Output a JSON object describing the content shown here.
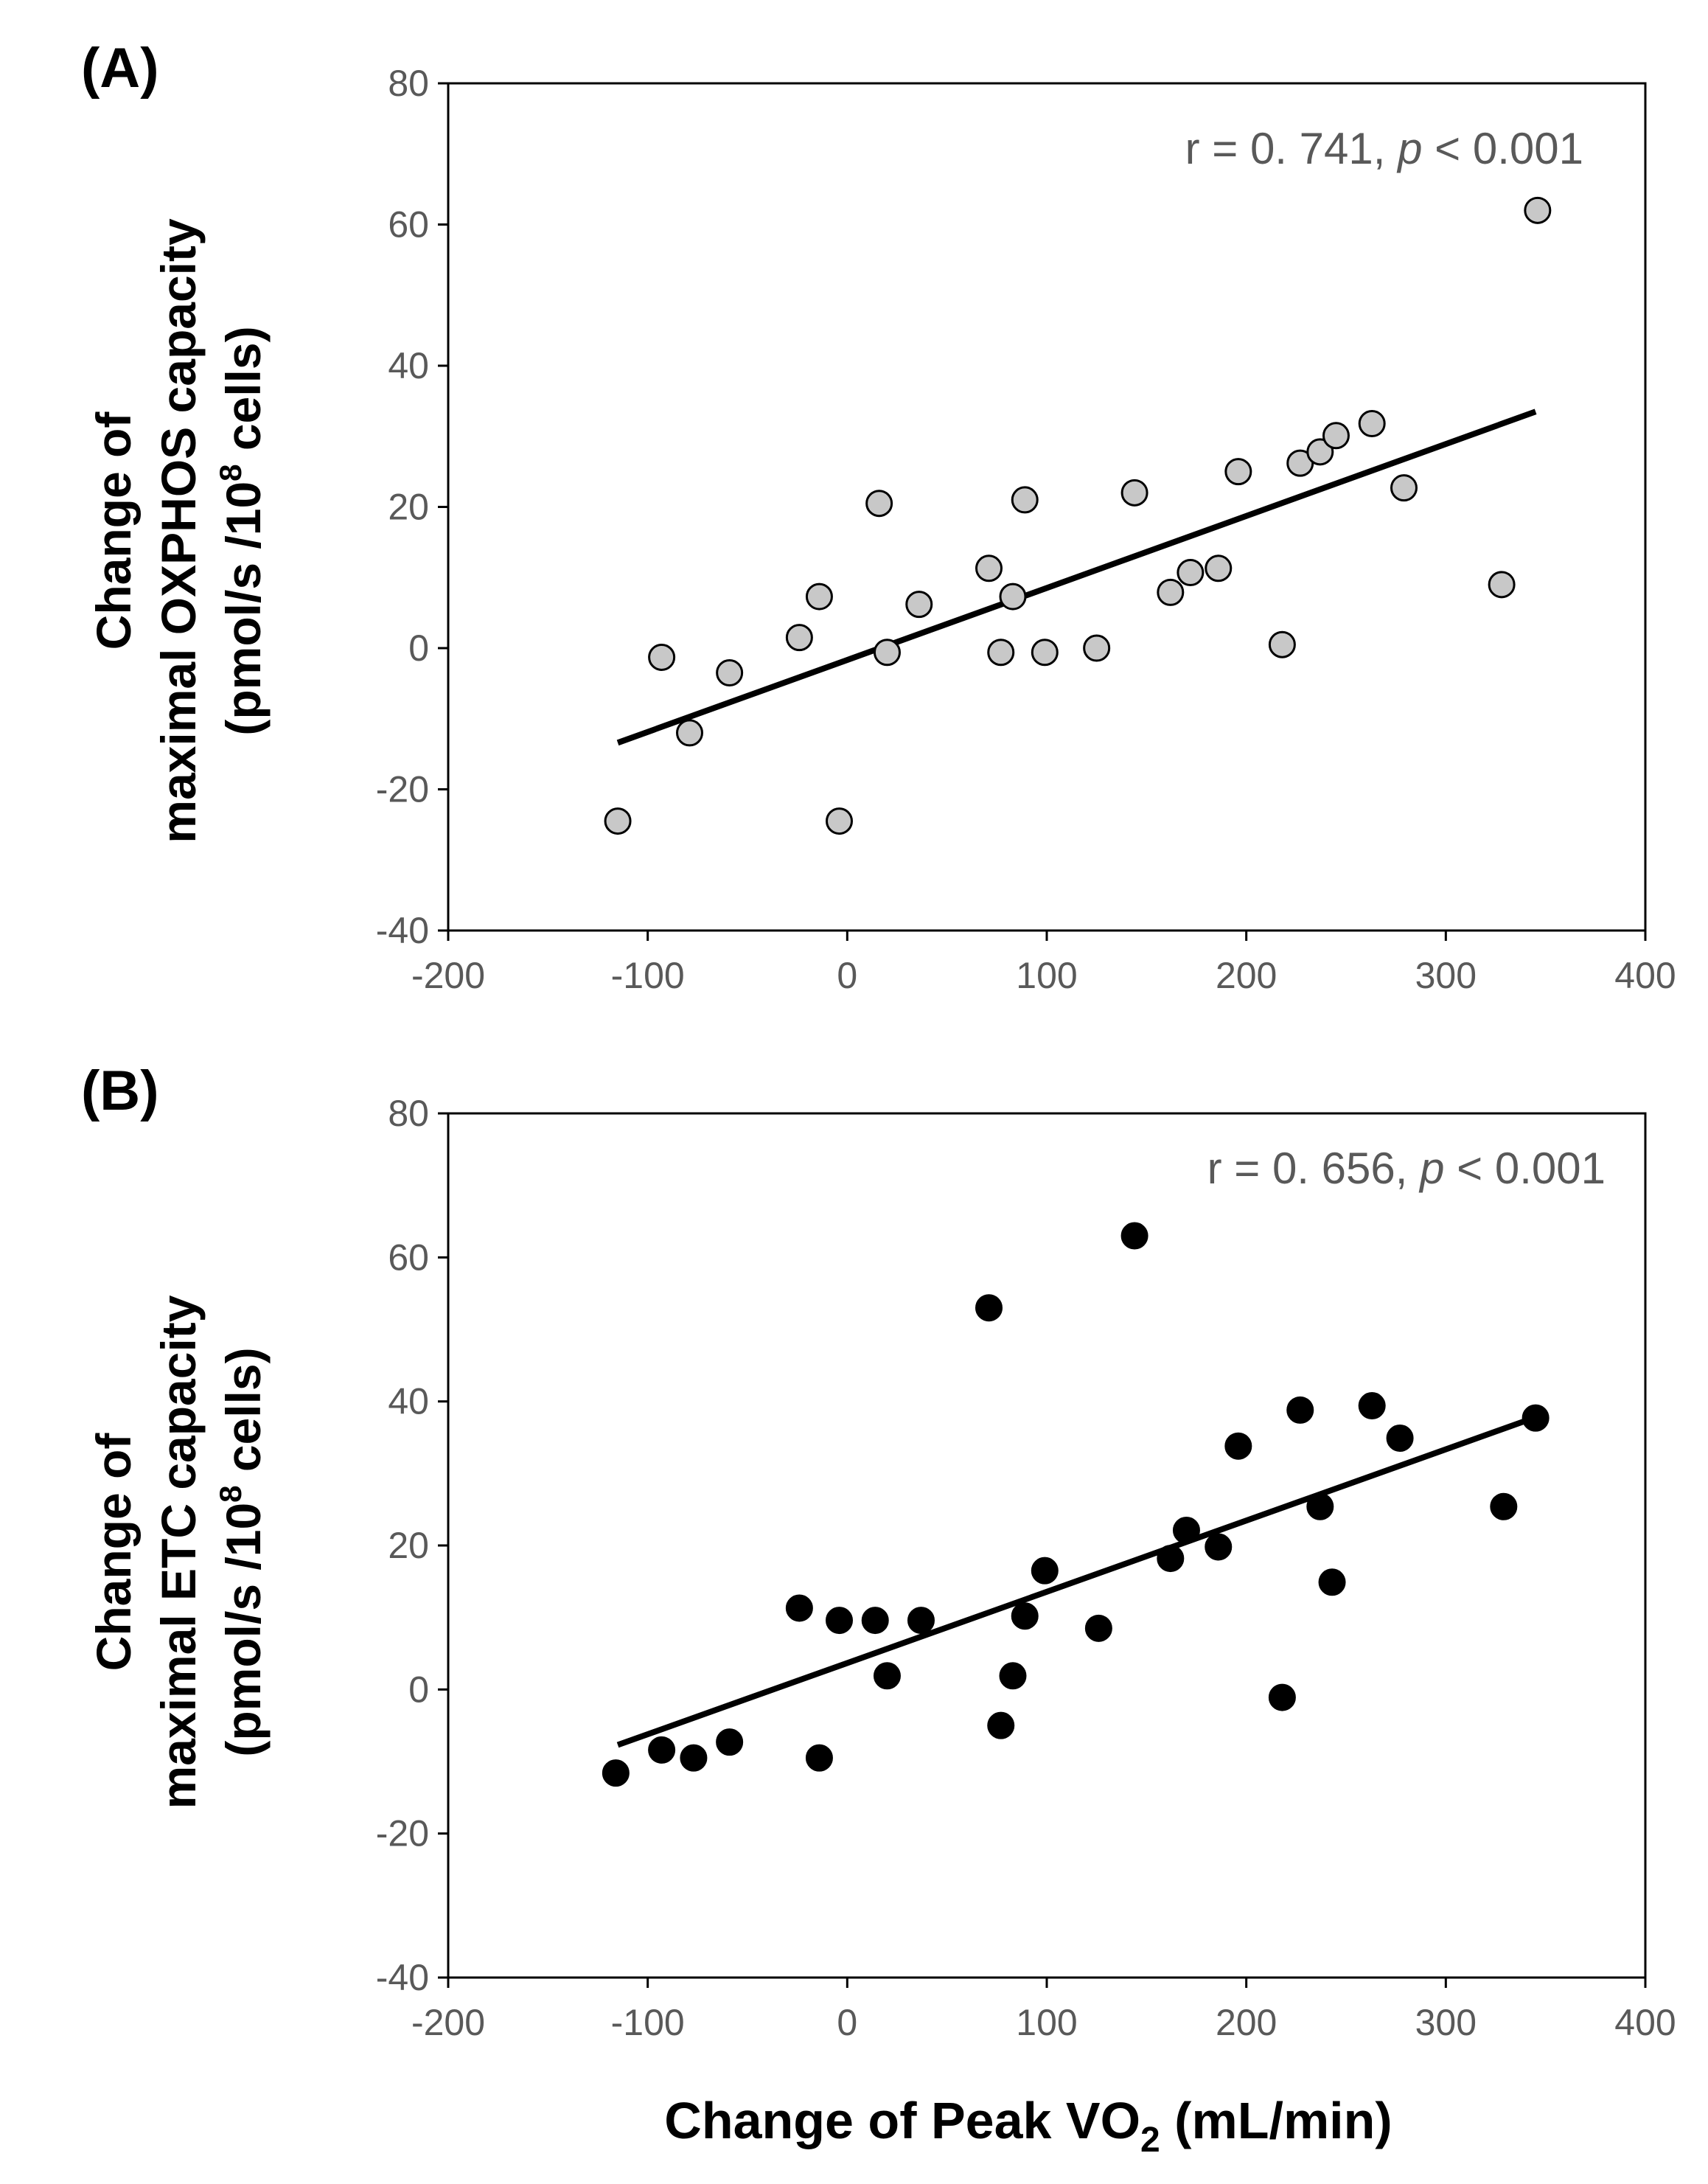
{
  "chart_data": [
    {
      "type": "scatter",
      "panel_label": "(A)",
      "y_title_lines": [
        "Change of",
        "maximal OXPHOS capacity",
        "(pmol/s /10",
        "8",
        " cells)"
      ],
      "xlabel": "Change of Peak VO2 (mL/min)",
      "xlim": [
        -200,
        400
      ],
      "ylim": [
        -40,
        80
      ],
      "x_ticks": [
        "-200",
        "-100",
        "0",
        "100",
        "200",
        "300",
        "400"
      ],
      "y_ticks": [
        "80",
        "60",
        "40",
        "20",
        "0",
        "-20",
        "-40"
      ],
      "x_tick_values": [
        -200,
        -100,
        0,
        100,
        200,
        300,
        400
      ],
      "y_tick_values": [
        80,
        60,
        40,
        20,
        0,
        -20,
        -40
      ],
      "grid": false,
      "marker_fill": "#c8c8c8",
      "marker_stroke": "#000000",
      "annotation": {
        "prefix": "r = 0. 741, ",
        "p": "p",
        "suffix": " < 0.001"
      },
      "trendline": {
        "x": [
          -115,
          345
        ],
        "y": [
          -13.4,
          33.5
        ]
      },
      "points": [
        {
          "x": -115,
          "y": -24.5
        },
        {
          "x": -93,
          "y": -1.3
        },
        {
          "x": -79,
          "y": -12
        },
        {
          "x": -59,
          "y": -3.5
        },
        {
          "x": -24,
          "y": 1.5
        },
        {
          "x": -14,
          "y": 7.3
        },
        {
          "x": -4,
          "y": -24.5
        },
        {
          "x": 16,
          "y": 20.5
        },
        {
          "x": 20,
          "y": -0.6
        },
        {
          "x": 36,
          "y": 6.2
        },
        {
          "x": 71,
          "y": 11.3
        },
        {
          "x": 77,
          "y": -0.6
        },
        {
          "x": 83,
          "y": 7.3
        },
        {
          "x": 89,
          "y": 21
        },
        {
          "x": 99,
          "y": -0.6
        },
        {
          "x": 125,
          "y": 0
        },
        {
          "x": 144,
          "y": 22
        },
        {
          "x": 162,
          "y": 7.9
        },
        {
          "x": 172,
          "y": 10.7
        },
        {
          "x": 186,
          "y": 11.3
        },
        {
          "x": 196,
          "y": 25
        },
        {
          "x": 218,
          "y": 0.5
        },
        {
          "x": 227,
          "y": 26.2
        },
        {
          "x": 237,
          "y": 27.8
        },
        {
          "x": 245,
          "y": 30.1
        },
        {
          "x": 263,
          "y": 31.8
        },
        {
          "x": 279,
          "y": 22.7
        },
        {
          "x": 328,
          "y": 9
        },
        {
          "x": 346,
          "y": 62
        }
      ]
    },
    {
      "type": "scatter",
      "panel_label": "(B)",
      "y_title_lines": [
        "Change of",
        "maximal ETC capacity",
        "(pmol/s /10",
        "8",
        " cells)"
      ],
      "xlabel": "Change of Peak VO2 (mL/min)",
      "xlim": [
        -200,
        400
      ],
      "ylim": [
        -40,
        80
      ],
      "x_ticks": [
        "-200",
        "-100",
        "0",
        "100",
        "200",
        "300",
        "400"
      ],
      "y_ticks": [
        "80",
        "60",
        "40",
        "20",
        "0",
        "-20",
        "-40"
      ],
      "x_tick_values": [
        -200,
        -100,
        0,
        100,
        200,
        300,
        400
      ],
      "y_tick_values": [
        80,
        60,
        40,
        20,
        0,
        -20,
        -40
      ],
      "grid": false,
      "marker_fill": "#000000",
      "marker_stroke": "#000000",
      "annotation": {
        "prefix": "r = 0. 656, ",
        "p": "p",
        "suffix": " < 0.001"
      },
      "trendline": {
        "x": [
          -115,
          345
        ],
        "y": [
          -7.7,
          37.8
        ]
      },
      "points": [
        {
          "x": -116,
          "y": -11.6
        },
        {
          "x": -93,
          "y": -8.4
        },
        {
          "x": -77,
          "y": -9.5
        },
        {
          "x": -59,
          "y": -7.3
        },
        {
          "x": -24,
          "y": 11.3
        },
        {
          "x": -14,
          "y": -9.5
        },
        {
          "x": -4,
          "y": 9.6
        },
        {
          "x": 14,
          "y": 9.6
        },
        {
          "x": 20,
          "y": 1.9
        },
        {
          "x": 37,
          "y": 9.6
        },
        {
          "x": 71,
          "y": 53
        },
        {
          "x": 77,
          "y": -5
        },
        {
          "x": 83,
          "y": 1.9
        },
        {
          "x": 89,
          "y": 10.2
        },
        {
          "x": 99,
          "y": 16.5
        },
        {
          "x": 126,
          "y": 8.5
        },
        {
          "x": 144,
          "y": 63
        },
        {
          "x": 162,
          "y": 18.2
        },
        {
          "x": 170,
          "y": 22.1
        },
        {
          "x": 186,
          "y": 19.8
        },
        {
          "x": 196,
          "y": 33.8
        },
        {
          "x": 218,
          "y": -1.1
        },
        {
          "x": 227,
          "y": 38.8
        },
        {
          "x": 237,
          "y": 25.4
        },
        {
          "x": 243,
          "y": 14.9
        },
        {
          "x": 263,
          "y": 39.4
        },
        {
          "x": 277,
          "y": 34.9
        },
        {
          "x": 329,
          "y": 25.4
        },
        {
          "x": 345,
          "y": 37.7
        }
      ]
    }
  ],
  "x_title": {
    "main": "Change of Peak VO",
    "sub": "2",
    "tail": " (mL/min)"
  }
}
